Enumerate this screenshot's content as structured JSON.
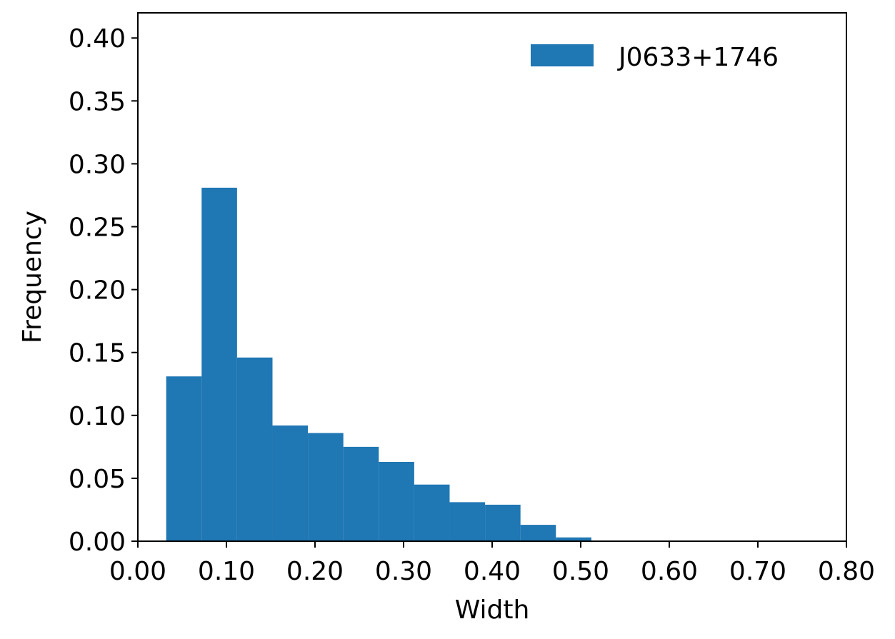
{
  "chart_data": {
    "type": "bar",
    "histogram": true,
    "title": "",
    "xlabel": "Width",
    "ylabel": "Frequency",
    "xlim": [
      0.0,
      0.8
    ],
    "ylim": [
      0.0,
      0.42
    ],
    "x_ticks": [
      "0.00",
      "0.10",
      "0.20",
      "0.30",
      "0.40",
      "0.50",
      "0.60",
      "0.70",
      "0.80"
    ],
    "y_ticks": [
      "0.00",
      "0.05",
      "0.10",
      "0.15",
      "0.20",
      "0.25",
      "0.30",
      "0.35",
      "0.40"
    ],
    "grid": false,
    "legend": {
      "position": "top-right",
      "entries": [
        "J0633+1746"
      ]
    },
    "series": [
      {
        "name": "J0633+1746",
        "color": "#1f77b4",
        "bin_edges": [
          0.032,
          0.072,
          0.112,
          0.152,
          0.192,
          0.232,
          0.272,
          0.312,
          0.352,
          0.392,
          0.432,
          0.472,
          0.512
        ],
        "values": [
          0.131,
          0.281,
          0.146,
          0.092,
          0.086,
          0.075,
          0.063,
          0.045,
          0.031,
          0.029,
          0.013,
          0.003
        ]
      }
    ]
  }
}
